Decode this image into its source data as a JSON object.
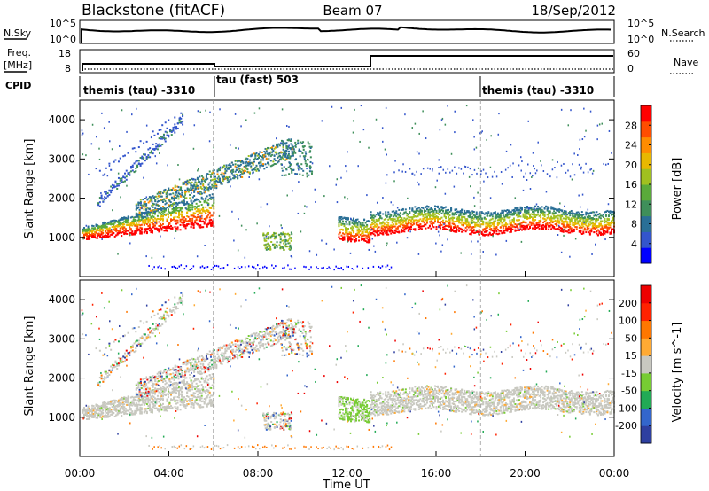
{
  "header": {
    "station": "Blackstone (fitACF)",
    "beam": "Beam 07",
    "date": "18/Sep/2012"
  },
  "top_panels": {
    "nsky_label": "N.Sky",
    "nsky_ticks": [
      "10^5",
      "10^0"
    ],
    "nsearch_label": "N.Search",
    "nsearch_ticks": [
      "10^5",
      "10^0"
    ],
    "freq_label_1": "Freq.",
    "freq_label_2": "[MHz]",
    "freq_ticks": [
      "18",
      "8"
    ],
    "nave_label": "Nave",
    "nave_ticks": [
      "60",
      "0"
    ],
    "cpid_label": "CPID",
    "cpid_segments": [
      {
        "label": "themis (tau) -3310",
        "start_hour": 0
      },
      {
        "label": "tau (fast) 503",
        "start_hour": 6
      },
      {
        "label": "themis (tau) -3310",
        "start_hour": 18
      }
    ]
  },
  "chart_data": [
    {
      "type": "heatmap",
      "name": "power",
      "ylabel": "Slant Range [km]",
      "ylim": [
        0,
        4500
      ],
      "yticks": [
        1000,
        2000,
        3000,
        4000
      ],
      "xlim": [
        0,
        24
      ],
      "colorbar": {
        "label": "Power [dB]",
        "ticks": [
          "28",
          "24",
          "20",
          "16",
          "12",
          "8",
          "4"
        ],
        "colors": [
          "#0000ff",
          "#3355cc",
          "#2a6f96",
          "#3f8f5a",
          "#5aaa3a",
          "#a0c020",
          "#e8b800",
          "#ff8c00",
          "#ff4d00",
          "#ff0000"
        ]
      },
      "features": [
        {
          "desc": "ground scatter band",
          "x": [
            0.1,
            5.8
          ],
          "y": [
            950,
            1300
          ]
        },
        {
          "desc": "ground scatter band",
          "x": [
            11.6,
            24.0
          ],
          "y": [
            1150,
            1750
          ]
        }
      ]
    },
    {
      "type": "heatmap",
      "name": "velocity",
      "ylabel": "Slant Range [km]",
      "ylim": [
        0,
        4500
      ],
      "yticks": [
        1000,
        2000,
        3000,
        4000
      ],
      "xlim": [
        0,
        24
      ],
      "colorbar": {
        "label": "Velocity [m s^-1]",
        "ticks": [
          "200",
          "100",
          "50",
          "15",
          "-15",
          "-50",
          "-100",
          "-200"
        ],
        "colors": [
          "#2e3fa0",
          "#3366cc",
          "#22aa55",
          "#77cc33",
          "#c8c8c0",
          "#ffaa33",
          "#ff7700",
          "#ff2200",
          "#ee0000"
        ]
      }
    }
  ],
  "time_axis": {
    "ticks": [
      "00:00",
      "04:00",
      "08:00",
      "12:00",
      "16:00",
      "20:00",
      "00:00"
    ],
    "label": "Time UT"
  }
}
